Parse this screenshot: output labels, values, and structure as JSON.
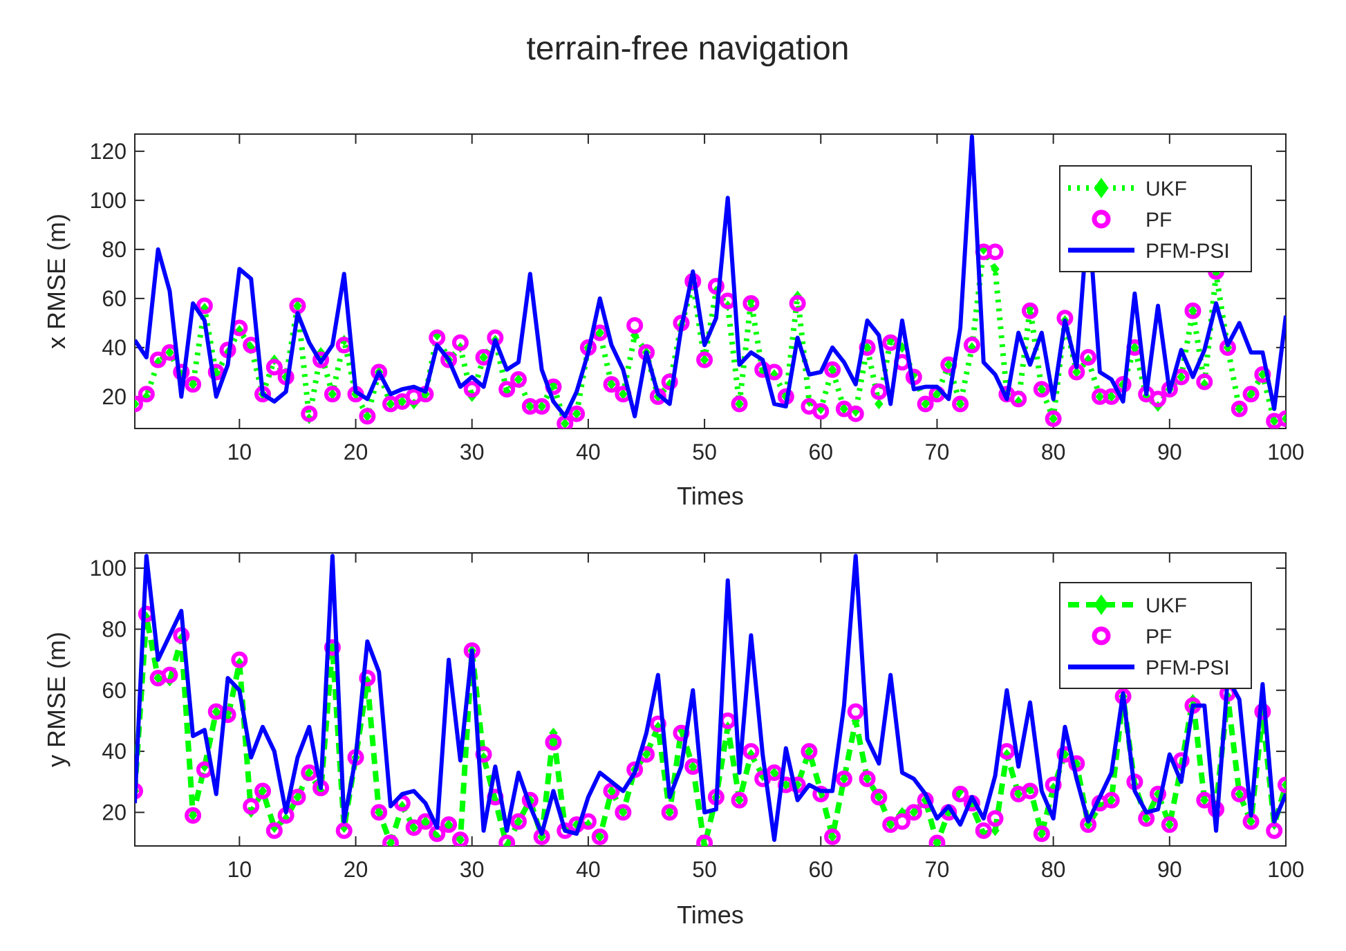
{
  "page_title": "terrain-free navigation",
  "colors": {
    "ukf": "#00ff00",
    "pf": "#ff00ff",
    "pfm": "#0000ff",
    "axis": "#262626"
  },
  "chart_data": [
    {
      "type": "line",
      "title": "terrain-free navigation",
      "xlabel": "Times",
      "ylabel": "x  RMSE (m)",
      "xlim": [
        1,
        100
      ],
      "ylim": [
        7,
        127
      ],
      "xticks": [
        10,
        20,
        30,
        40,
        50,
        60,
        70,
        80,
        90,
        100
      ],
      "xtick_labels": [
        "10",
        "20",
        "30",
        "40",
        "50",
        "60",
        "70",
        "80",
        "90",
        "100"
      ],
      "yticks": [
        20,
        40,
        60,
        80,
        100,
        120
      ],
      "ytick_labels": [
        "20",
        "40",
        "60",
        "80",
        "100",
        "120"
      ],
      "legend_position": "top-right",
      "series": [
        {
          "name": "UKF",
          "style": "dotted-diamond",
          "values": [
            17,
            20,
            34,
            38,
            29,
            25,
            56,
            29,
            38,
            47,
            40,
            21,
            35,
            28,
            57,
            11,
            38,
            21,
            43,
            21,
            12,
            30,
            17,
            18,
            17,
            21,
            45,
            35,
            40,
            20,
            36,
            43,
            22,
            27,
            16,
            16,
            25,
            9,
            13,
            40,
            46,
            25,
            21,
            45,
            38,
            20,
            25,
            49,
            66,
            35,
            63,
            57,
            17,
            59,
            30,
            29,
            20,
            61,
            18,
            15,
            31,
            15,
            14,
            40,
            17,
            43,
            40,
            29,
            17,
            21,
            33,
            17,
            40,
            80,
            72,
            21,
            18,
            56,
            23,
            11,
            51,
            30,
            35,
            20,
            20,
            25,
            40,
            20,
            16,
            23,
            28,
            55,
            25,
            70,
            40,
            15,
            21,
            29,
            10,
            11
          ]
        },
        {
          "name": "PF",
          "style": "circle-markers",
          "values": [
            17,
            21,
            35,
            38,
            30,
            25,
            57,
            30,
            39,
            48,
            41,
            21,
            32,
            28,
            57,
            13,
            35,
            21,
            41,
            21,
            12,
            30,
            17,
            18,
            20,
            21,
            44,
            35,
            42,
            23,
            36,
            44,
            23,
            27,
            16,
            16,
            24,
            9,
            13,
            40,
            46,
            25,
            21,
            49,
            38,
            20,
            26,
            50,
            67,
            35,
            65,
            59,
            17,
            58,
            31,
            30,
            20,
            58,
            16,
            14,
            31,
            15,
            13,
            40,
            22,
            42,
            34,
            28,
            17,
            21,
            33,
            17,
            41,
            79,
            79,
            21,
            19,
            55,
            23,
            11,
            52,
            30,
            36,
            20,
            20,
            25,
            40,
            21,
            19,
            23,
            28,
            55,
            26,
            71,
            40,
            15,
            21,
            29,
            10,
            11
          ]
        },
        {
          "name": "PFM-PSI",
          "style": "solid",
          "values": [
            43,
            36,
            80,
            63,
            20,
            58,
            51,
            20,
            33,
            72,
            68,
            21,
            18,
            22,
            54,
            42,
            34,
            41,
            70,
            22,
            19,
            30,
            21,
            23,
            24,
            22,
            41,
            35,
            24,
            28,
            24,
            43,
            31,
            34,
            70,
            31,
            18,
            12,
            22,
            38,
            60,
            41,
            31,
            12,
            38,
            21,
            17,
            48,
            71,
            41,
            52,
            101,
            33,
            38,
            35,
            17,
            16,
            44,
            29,
            30,
            40,
            34,
            25,
            51,
            45,
            17,
            51,
            23,
            24,
            24,
            19,
            48,
            126,
            34,
            29,
            19,
            46,
            33,
            46,
            19,
            51,
            32,
            95,
            30,
            27,
            18,
            62,
            21,
            57,
            22,
            39,
            28,
            39,
            58,
            41,
            50,
            38,
            38,
            15,
            53
          ]
        }
      ]
    },
    {
      "type": "line",
      "title": "",
      "xlabel": "Times",
      "ylabel": "y  RMSE (m)",
      "xlim": [
        1,
        100
      ],
      "ylim": [
        9,
        105
      ],
      "xticks": [
        10,
        20,
        30,
        40,
        50,
        60,
        70,
        80,
        90,
        100
      ],
      "xtick_labels": [
        "10",
        "20",
        "30",
        "40",
        "50",
        "60",
        "70",
        "80",
        "90",
        "100"
      ],
      "yticks": [
        20,
        40,
        60,
        80,
        100
      ],
      "ytick_labels": [
        "20",
        "40",
        "60",
        "80",
        "100"
      ],
      "legend_position": "top-right",
      "series": [
        {
          "name": "UKF",
          "style": "dashed-diamond",
          "values": [
            27,
            84,
            64,
            63,
            77,
            19,
            35,
            53,
            51,
            69,
            20,
            27,
            15,
            18,
            25,
            33,
            27,
            74,
            15,
            38,
            63,
            20,
            10,
            22,
            15,
            17,
            12,
            16,
            11,
            73,
            38,
            24,
            9,
            17,
            24,
            12,
            46,
            15,
            16,
            16,
            12,
            27,
            20,
            34,
            39,
            48,
            20,
            47,
            35,
            9,
            25,
            48,
            24,
            39,
            32,
            33,
            29,
            29,
            40,
            27,
            12,
            31,
            50,
            31,
            25,
            16,
            20,
            20,
            24,
            10,
            20,
            27,
            22,
            13,
            14,
            39,
            26,
            28,
            13,
            28,
            39,
            36,
            16,
            22,
            24,
            58,
            29,
            18,
            26,
            16,
            35,
            57,
            24,
            22,
            58,
            26,
            17,
            52,
            16,
            29
          ]
        },
        {
          "name": "PF",
          "style": "circle-markers",
          "values": [
            27,
            85,
            64,
            65,
            78,
            19,
            34,
            53,
            52,
            70,
            22,
            27,
            14,
            19,
            25,
            33,
            28,
            74,
            14,
            38,
            64,
            20,
            10,
            23,
            15,
            17,
            13,
            16,
            11,
            73,
            39,
            25,
            10,
            17,
            24,
            12,
            43,
            14,
            16,
            17,
            12,
            27,
            20,
            34,
            39,
            49,
            20,
            46,
            35,
            10,
            25,
            50,
            24,
            40,
            31,
            33,
            29,
            29,
            40,
            26,
            12,
            31,
            53,
            31,
            25,
            16,
            17,
            20,
            24,
            10,
            20,
            26,
            23,
            14,
            18,
            40,
            26,
            27,
            13,
            29,
            39,
            36,
            16,
            23,
            24,
            58,
            30,
            18,
            26,
            16,
            37,
            55,
            24,
            21,
            59,
            26,
            17,
            53,
            14,
            29
          ]
        },
        {
          "name": "PFM-PSI",
          "style": "solid",
          "values": [
            23,
            104,
            70,
            78,
            86,
            45,
            47,
            26,
            64,
            60,
            38,
            48,
            40,
            20,
            38,
            48,
            28,
            104,
            17,
            38,
            76,
            66,
            22,
            26,
            27,
            23,
            15,
            70,
            37,
            73,
            14,
            35,
            14,
            33,
            22,
            13,
            27,
            14,
            13,
            25,
            33,
            30,
            27,
            33,
            46,
            65,
            25,
            35,
            60,
            20,
            21,
            96,
            33,
            78,
            39,
            11,
            41,
            24,
            29,
            27,
            27,
            55,
            104,
            44,
            36,
            65,
            33,
            31,
            26,
            18,
            22,
            16,
            25,
            18,
            32,
            60,
            35,
            56,
            27,
            18,
            48,
            31,
            17,
            25,
            33,
            59,
            27,
            20,
            21,
            39,
            30,
            55,
            55,
            14,
            64,
            57,
            19,
            62,
            17,
            26
          ]
        }
      ]
    }
  ]
}
